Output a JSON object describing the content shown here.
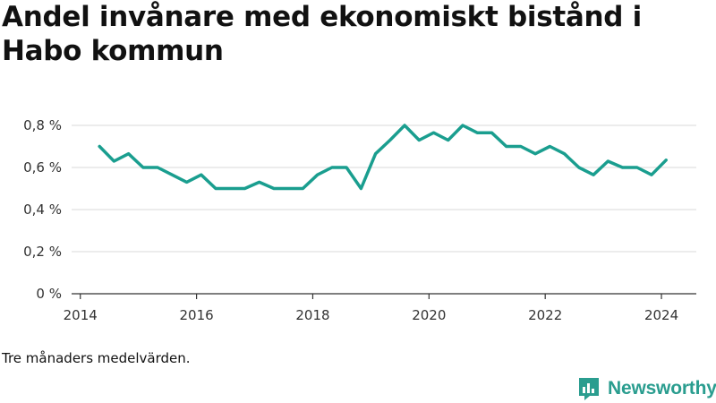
{
  "title": "Andel invånare med ekonomiskt bistånd i Habo kommun",
  "caption": "Tre månaders medelvärden.",
  "logo": {
    "text": "Newsworthy",
    "icon": "bar-chart-speech-bubble-icon",
    "color": "#2a9d8f"
  },
  "chart_data": {
    "type": "line",
    "xlim": [
      2013.85,
      2024.6
    ],
    "ylim": [
      0,
      0.8
    ],
    "grid": true,
    "color": "#1a9e8f",
    "x_ticks": [
      {
        "value": 2014,
        "label": "2014"
      },
      {
        "value": 2016,
        "label": "2016"
      },
      {
        "value": 2018,
        "label": "2018"
      },
      {
        "value": 2020,
        "label": "2020"
      },
      {
        "value": 2022,
        "label": "2022"
      },
      {
        "value": 2024,
        "label": "2024"
      }
    ],
    "y_ticks": [
      {
        "value": 0,
        "label": "0 %"
      },
      {
        "value": 0.2,
        "label": "0,2 %"
      },
      {
        "value": 0.4,
        "label": "0,4 %"
      },
      {
        "value": 0.6,
        "label": "0,6 %"
      },
      {
        "value": 0.8,
        "label": "0,8 %"
      }
    ],
    "x": [
      2014.33,
      2014.58,
      2014.83,
      2015.08,
      2015.33,
      2015.58,
      2015.83,
      2016.08,
      2016.33,
      2016.58,
      2016.83,
      2017.08,
      2017.33,
      2017.58,
      2017.83,
      2018.08,
      2018.33,
      2018.58,
      2018.83,
      2019.08,
      2019.33,
      2019.58,
      2019.83,
      2020.08,
      2020.33,
      2020.58,
      2020.83,
      2021.08,
      2021.33,
      2021.58,
      2021.83,
      2022.08,
      2022.33,
      2022.58,
      2022.83,
      2023.08,
      2023.33,
      2023.58,
      2023.83,
      2024.08
    ],
    "values": [
      0.7,
      0.63,
      0.665,
      0.6,
      0.6,
      0.565,
      0.53,
      0.565,
      0.5,
      0.5,
      0.5,
      0.53,
      0.5,
      0.5,
      0.5,
      0.565,
      0.6,
      0.6,
      0.5,
      0.665,
      0.73,
      0.8,
      0.73,
      0.765,
      0.73,
      0.8,
      0.765,
      0.765,
      0.7,
      0.7,
      0.665,
      0.7,
      0.665,
      0.6,
      0.565,
      0.63,
      0.6,
      0.6,
      0.565,
      0.635
    ]
  }
}
